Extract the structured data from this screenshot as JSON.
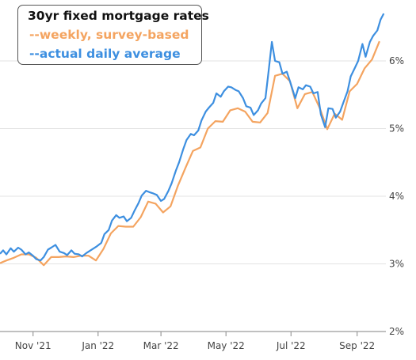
{
  "chart_data": {
    "type": "line",
    "title": "30yr fixed mortgage rates",
    "y_ticks": [
      "2%",
      "3%",
      "4%",
      "5%",
      "6%"
    ],
    "ylim": [
      2,
      6.9
    ],
    "x_ticks": [
      {
        "label": "Nov '21",
        "date": "2021-11-01"
      },
      {
        "label": "Jan '22",
        "date": "2022-01-01"
      },
      {
        "label": "Mar '22",
        "date": "2022-03-01"
      },
      {
        "label": "May '22",
        "date": "2022-05-01"
      },
      {
        "label": "Jul '22",
        "date": "2022-07-01"
      },
      {
        "label": "Sep '22",
        "date": "2022-09-01"
      }
    ],
    "xlim": [
      "2021-10-01",
      "2022-09-28"
    ],
    "grid": true,
    "legend_position": "top-left",
    "series": [
      {
        "name": "--weekly, survey-based",
        "color": "#f4a460",
        "points": [
          [
            "2021-10-01",
            3.01
          ],
          [
            "2021-10-07",
            3.05
          ],
          [
            "2021-10-14",
            3.09
          ],
          [
            "2021-10-21",
            3.14
          ],
          [
            "2021-10-28",
            3.14
          ],
          [
            "2021-11-04",
            3.09
          ],
          [
            "2021-11-11",
            2.98
          ],
          [
            "2021-11-18",
            3.1
          ],
          [
            "2021-11-25",
            3.1
          ],
          [
            "2021-12-02",
            3.11
          ],
          [
            "2021-12-09",
            3.1
          ],
          [
            "2021-12-16",
            3.12
          ],
          [
            "2021-12-23",
            3.12
          ],
          [
            "2021-12-30",
            3.05
          ],
          [
            "2022-01-06",
            3.22
          ],
          [
            "2022-01-13",
            3.45
          ],
          [
            "2022-01-20",
            3.56
          ],
          [
            "2022-01-27",
            3.55
          ],
          [
            "2022-02-03",
            3.55
          ],
          [
            "2022-02-10",
            3.69
          ],
          [
            "2022-02-17",
            3.92
          ],
          [
            "2022-02-24",
            3.89
          ],
          [
            "2022-03-03",
            3.76
          ],
          [
            "2022-03-10",
            3.85
          ],
          [
            "2022-03-17",
            4.16
          ],
          [
            "2022-03-24",
            4.42
          ],
          [
            "2022-03-31",
            4.67
          ],
          [
            "2022-04-07",
            4.72
          ],
          [
            "2022-04-14",
            5.0
          ],
          [
            "2022-04-21",
            5.11
          ],
          [
            "2022-04-28",
            5.1
          ],
          [
            "2022-05-05",
            5.27
          ],
          [
            "2022-05-12",
            5.3
          ],
          [
            "2022-05-19",
            5.25
          ],
          [
            "2022-05-26",
            5.1
          ],
          [
            "2022-06-02",
            5.09
          ],
          [
            "2022-06-09",
            5.23
          ],
          [
            "2022-06-16",
            5.78
          ],
          [
            "2022-06-23",
            5.81
          ],
          [
            "2022-06-30",
            5.7
          ],
          [
            "2022-07-07",
            5.3
          ],
          [
            "2022-07-14",
            5.51
          ],
          [
            "2022-07-21",
            5.54
          ],
          [
            "2022-07-28",
            5.3
          ],
          [
            "2022-08-04",
            4.99
          ],
          [
            "2022-08-11",
            5.22
          ],
          [
            "2022-08-18",
            5.13
          ],
          [
            "2022-08-25",
            5.55
          ],
          [
            "2022-09-01",
            5.66
          ],
          [
            "2022-09-08",
            5.89
          ],
          [
            "2022-09-15",
            6.02
          ],
          [
            "2022-09-22",
            6.29
          ]
        ]
      },
      {
        "name": "--actual daily average",
        "color": "#3d8fe0",
        "points": [
          [
            "2021-10-01",
            3.15
          ],
          [
            "2021-10-04",
            3.2
          ],
          [
            "2021-10-07",
            3.14
          ],
          [
            "2021-10-11",
            3.23
          ],
          [
            "2021-10-14",
            3.18
          ],
          [
            "2021-10-18",
            3.24
          ],
          [
            "2021-10-21",
            3.21
          ],
          [
            "2021-10-25",
            3.14
          ],
          [
            "2021-10-28",
            3.17
          ],
          [
            "2021-11-01",
            3.12
          ],
          [
            "2021-11-04",
            3.07
          ],
          [
            "2021-11-08",
            3.05
          ],
          [
            "2021-11-11",
            3.1
          ],
          [
            "2021-11-15",
            3.21
          ],
          [
            "2021-11-18",
            3.24
          ],
          [
            "2021-11-22",
            3.28
          ],
          [
            "2021-11-26",
            3.18
          ],
          [
            "2021-11-30",
            3.16
          ],
          [
            "2021-12-03",
            3.13
          ],
          [
            "2021-12-07",
            3.2
          ],
          [
            "2021-12-10",
            3.15
          ],
          [
            "2021-12-14",
            3.14
          ],
          [
            "2021-12-17",
            3.11
          ],
          [
            "2021-12-21",
            3.16
          ],
          [
            "2021-12-27",
            3.22
          ],
          [
            "2021-12-30",
            3.25
          ],
          [
            "2022-01-04",
            3.31
          ],
          [
            "2022-01-07",
            3.44
          ],
          [
            "2022-01-11",
            3.5
          ],
          [
            "2022-01-14",
            3.64
          ],
          [
            "2022-01-18",
            3.72
          ],
          [
            "2022-01-21",
            3.68
          ],
          [
            "2022-01-25",
            3.7
          ],
          [
            "2022-01-28",
            3.63
          ],
          [
            "2022-02-01",
            3.68
          ],
          [
            "2022-02-04",
            3.78
          ],
          [
            "2022-02-08",
            3.9
          ],
          [
            "2022-02-11",
            4.01
          ],
          [
            "2022-02-15",
            4.08
          ],
          [
            "2022-02-18",
            4.06
          ],
          [
            "2022-02-22",
            4.04
          ],
          [
            "2022-02-25",
            4.02
          ],
          [
            "2022-03-01",
            3.93
          ],
          [
            "2022-03-04",
            3.96
          ],
          [
            "2022-03-08",
            4.08
          ],
          [
            "2022-03-11",
            4.19
          ],
          [
            "2022-03-15",
            4.38
          ],
          [
            "2022-03-18",
            4.5
          ],
          [
            "2022-03-22",
            4.7
          ],
          [
            "2022-03-25",
            4.83
          ],
          [
            "2022-03-29",
            4.92
          ],
          [
            "2022-04-01",
            4.9
          ],
          [
            "2022-04-05",
            4.97
          ],
          [
            "2022-04-08",
            5.12
          ],
          [
            "2022-04-12",
            5.25
          ],
          [
            "2022-04-15",
            5.31
          ],
          [
            "2022-04-19",
            5.38
          ],
          [
            "2022-04-22",
            5.52
          ],
          [
            "2022-04-26",
            5.47
          ],
          [
            "2022-04-29",
            5.55
          ],
          [
            "2022-05-03",
            5.62
          ],
          [
            "2022-05-06",
            5.61
          ],
          [
            "2022-05-10",
            5.57
          ],
          [
            "2022-05-13",
            5.55
          ],
          [
            "2022-05-17",
            5.45
          ],
          [
            "2022-05-20",
            5.33
          ],
          [
            "2022-05-24",
            5.31
          ],
          [
            "2022-05-27",
            5.2
          ],
          [
            "2022-05-31",
            5.27
          ],
          [
            "2022-06-03",
            5.37
          ],
          [
            "2022-06-07",
            5.45
          ],
          [
            "2022-06-10",
            5.85
          ],
          [
            "2022-06-13",
            6.28
          ],
          [
            "2022-06-16",
            6.0
          ],
          [
            "2022-06-20",
            5.98
          ],
          [
            "2022-06-23",
            5.81
          ],
          [
            "2022-06-27",
            5.84
          ],
          [
            "2022-06-30",
            5.7
          ],
          [
            "2022-07-05",
            5.45
          ],
          [
            "2022-07-08",
            5.61
          ],
          [
            "2022-07-12",
            5.58
          ],
          [
            "2022-07-15",
            5.64
          ],
          [
            "2022-07-19",
            5.62
          ],
          [
            "2022-07-22",
            5.52
          ],
          [
            "2022-07-26",
            5.54
          ],
          [
            "2022-07-29",
            5.21
          ],
          [
            "2022-08-02",
            5.02
          ],
          [
            "2022-08-05",
            5.3
          ],
          [
            "2022-08-09",
            5.29
          ],
          [
            "2022-08-12",
            5.16
          ],
          [
            "2022-08-16",
            5.25
          ],
          [
            "2022-08-19",
            5.38
          ],
          [
            "2022-08-23",
            5.55
          ],
          [
            "2022-08-26",
            5.77
          ],
          [
            "2022-08-30",
            5.9
          ],
          [
            "2022-09-02",
            6.0
          ],
          [
            "2022-09-06",
            6.25
          ],
          [
            "2022-09-09",
            6.06
          ],
          [
            "2022-09-13",
            6.28
          ],
          [
            "2022-09-16",
            6.37
          ],
          [
            "2022-09-20",
            6.45
          ],
          [
            "2022-09-23",
            6.61
          ],
          [
            "2022-09-26",
            6.7
          ]
        ]
      }
    ]
  }
}
